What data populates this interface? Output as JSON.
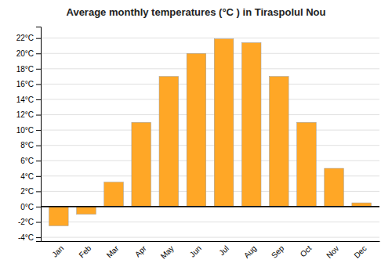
{
  "chart_data": {
    "type": "bar",
    "title": "Average monthly temperatures (°C ) in Tiraspolul Nou",
    "categories": [
      "Jan",
      "Feb",
      "Mar",
      "Apr",
      "May",
      "Jun",
      "Jul",
      "Aug",
      "Sep",
      "Oct",
      "Nov",
      "Dec"
    ],
    "values": [
      -2.5,
      -1.0,
      3.2,
      11.0,
      17.0,
      20.0,
      21.9,
      21.4,
      17.0,
      11.0,
      5.0,
      0.5
    ],
    "color": "#FFA726",
    "ylim": [
      -4.5,
      23.5
    ],
    "yticks": [
      {
        "value": -4,
        "label": "-4°C"
      },
      {
        "value": -2,
        "label": "-2°C"
      },
      {
        "value": 0,
        "label": "0°C"
      },
      {
        "value": 2,
        "label": "2°C"
      },
      {
        "value": 4,
        "label": "4°C"
      },
      {
        "value": 6,
        "label": "6°C"
      },
      {
        "value": 8,
        "label": "8°C"
      },
      {
        "value": 10,
        "label": "10°C"
      },
      {
        "value": 12,
        "label": "12°C"
      },
      {
        "value": 14,
        "label": "14°C"
      },
      {
        "value": 16,
        "label": "16°C"
      },
      {
        "value": 18,
        "label": "18°C"
      },
      {
        "value": 20,
        "label": "20°C"
      },
      {
        "value": 22,
        "label": "22°C"
      }
    ],
    "grid": true
  }
}
